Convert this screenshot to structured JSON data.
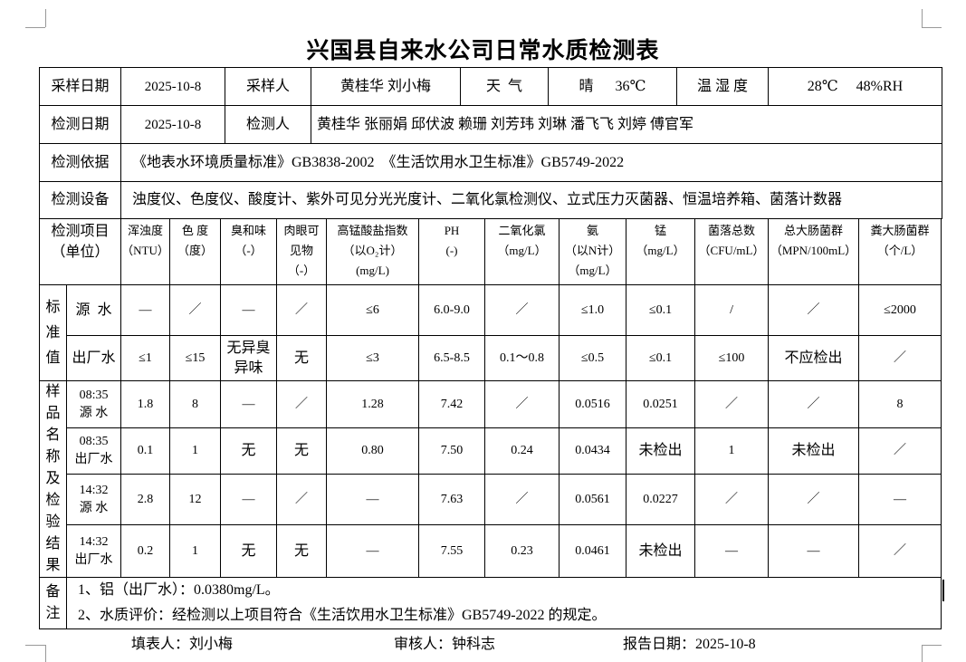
{
  "title": "兴国县自来水公司日常水质检测表",
  "info": {
    "sampling_date_label": "采样日期",
    "sampling_date": "2025-10-8",
    "sampler_label": "采样人",
    "samplers": "黄桂华 刘小梅",
    "weather_label": "天  气",
    "weather": "晴      36℃",
    "humidity_label": "温 湿 度",
    "humidity": "28℃     48%RH",
    "test_date_label": "检测日期",
    "test_date": "2025-10-8",
    "tester_label": "检测人",
    "testers": "黄桂华 张丽娟 邱伏波 赖珊 刘芳玮 刘琳 潘飞飞 刘婷 傅官军",
    "basis_label": "检测依据",
    "basis": "《地表水环境质量标准》GB3838-2002  《生活饮用水卫生标准》GB5749-2022",
    "equipment_label": "检测设备",
    "equipment": "浊度仪、色度仪、酸度计、紫外可见分光光度计、二氧化氯检测仪、立式压力灭菌器、恒温培养箱、菌落计数器"
  },
  "items": {
    "label": "检测项目",
    "unit_label": "（单位）",
    "columns": [
      {
        "lines": [
          "浑浊度",
          "（NTU）"
        ]
      },
      {
        "lines": [
          "色 度",
          "（度）"
        ]
      },
      {
        "lines": [
          "臭和味",
          "（-）"
        ]
      },
      {
        "lines": [
          "肉眼可",
          "见物",
          "（-）"
        ]
      },
      {
        "lines": [
          "高锰酸盐指数",
          "（以O₂计）",
          "(mg/L)"
        ]
      },
      {
        "lines": [
          "PH",
          "(-)"
        ]
      },
      {
        "lines": [
          "二氧化氯",
          "（mg/L）"
        ]
      },
      {
        "lines": [
          "氨",
          "（以N计）",
          "（mg/L）"
        ]
      },
      {
        "lines": [
          "锰",
          "（mg/L）"
        ]
      },
      {
        "lines": [
          "菌落总数",
          "（CFU/mL）"
        ]
      },
      {
        "lines": [
          "总大肠菌群",
          "（MPN/100mL）"
        ]
      },
      {
        "lines": [
          "粪大肠菌群",
          "（个/L）"
        ]
      }
    ]
  },
  "standard": {
    "label": "标准值",
    "rows": [
      {
        "type": "源  水",
        "values": [
          "—",
          "／",
          "—",
          "／",
          "≤6",
          "6.0-9.0",
          "／",
          "≤1.0",
          "≤0.1",
          "/",
          "／",
          "≤2000"
        ]
      },
      {
        "type": "出厂水",
        "values": [
          "≤1",
          "≤15",
          "无异臭异味",
          "无",
          "≤3",
          "6.5-8.5",
          "0.1～0.8",
          "≤0.5",
          "≤0.1",
          "≤100",
          "不应检出",
          "／"
        ]
      }
    ]
  },
  "samples": {
    "label": "样品名称及检验结果",
    "rows": [
      {
        "time": "08:35",
        "type": "源 水",
        "values": [
          "1.8",
          "8",
          "—",
          "／",
          "1.28",
          "7.42",
          "／",
          "0.0516",
          "0.0251",
          "／",
          "／",
          "8"
        ]
      },
      {
        "time": "08:35",
        "type": "出厂水",
        "values": [
          "0.1",
          "1",
          "无",
          "无",
          "0.80",
          "7.50",
          "0.24",
          "0.0434",
          "未检出",
          "1",
          "未检出",
          "／"
        ]
      },
      {
        "time": "14:32",
        "type": "源 水",
        "values": [
          "2.8",
          "12",
          "—",
          "／",
          "—",
          "7.63",
          "／",
          "0.0561",
          "0.0227",
          "／",
          "／",
          "—"
        ]
      },
      {
        "time": "14:32",
        "type": "出厂水",
        "values": [
          "0.2",
          "1",
          "无",
          "无",
          "—",
          "7.55",
          "0.23",
          "0.0461",
          "未检出",
          "—",
          "—",
          "／"
        ]
      }
    ]
  },
  "remarks": {
    "label": "备注",
    "lines": [
      "1、铝（出厂水）：0.0380mg/L。",
      "2、水质评价：经检测以上项目符合《生活饮用水卫生标准》GB5749-2022 的规定。"
    ]
  },
  "footer": {
    "filler": "填表人：刘小梅",
    "reviewer": "审核人：钟科志",
    "report_date": "报告日期：2025-10-8"
  }
}
